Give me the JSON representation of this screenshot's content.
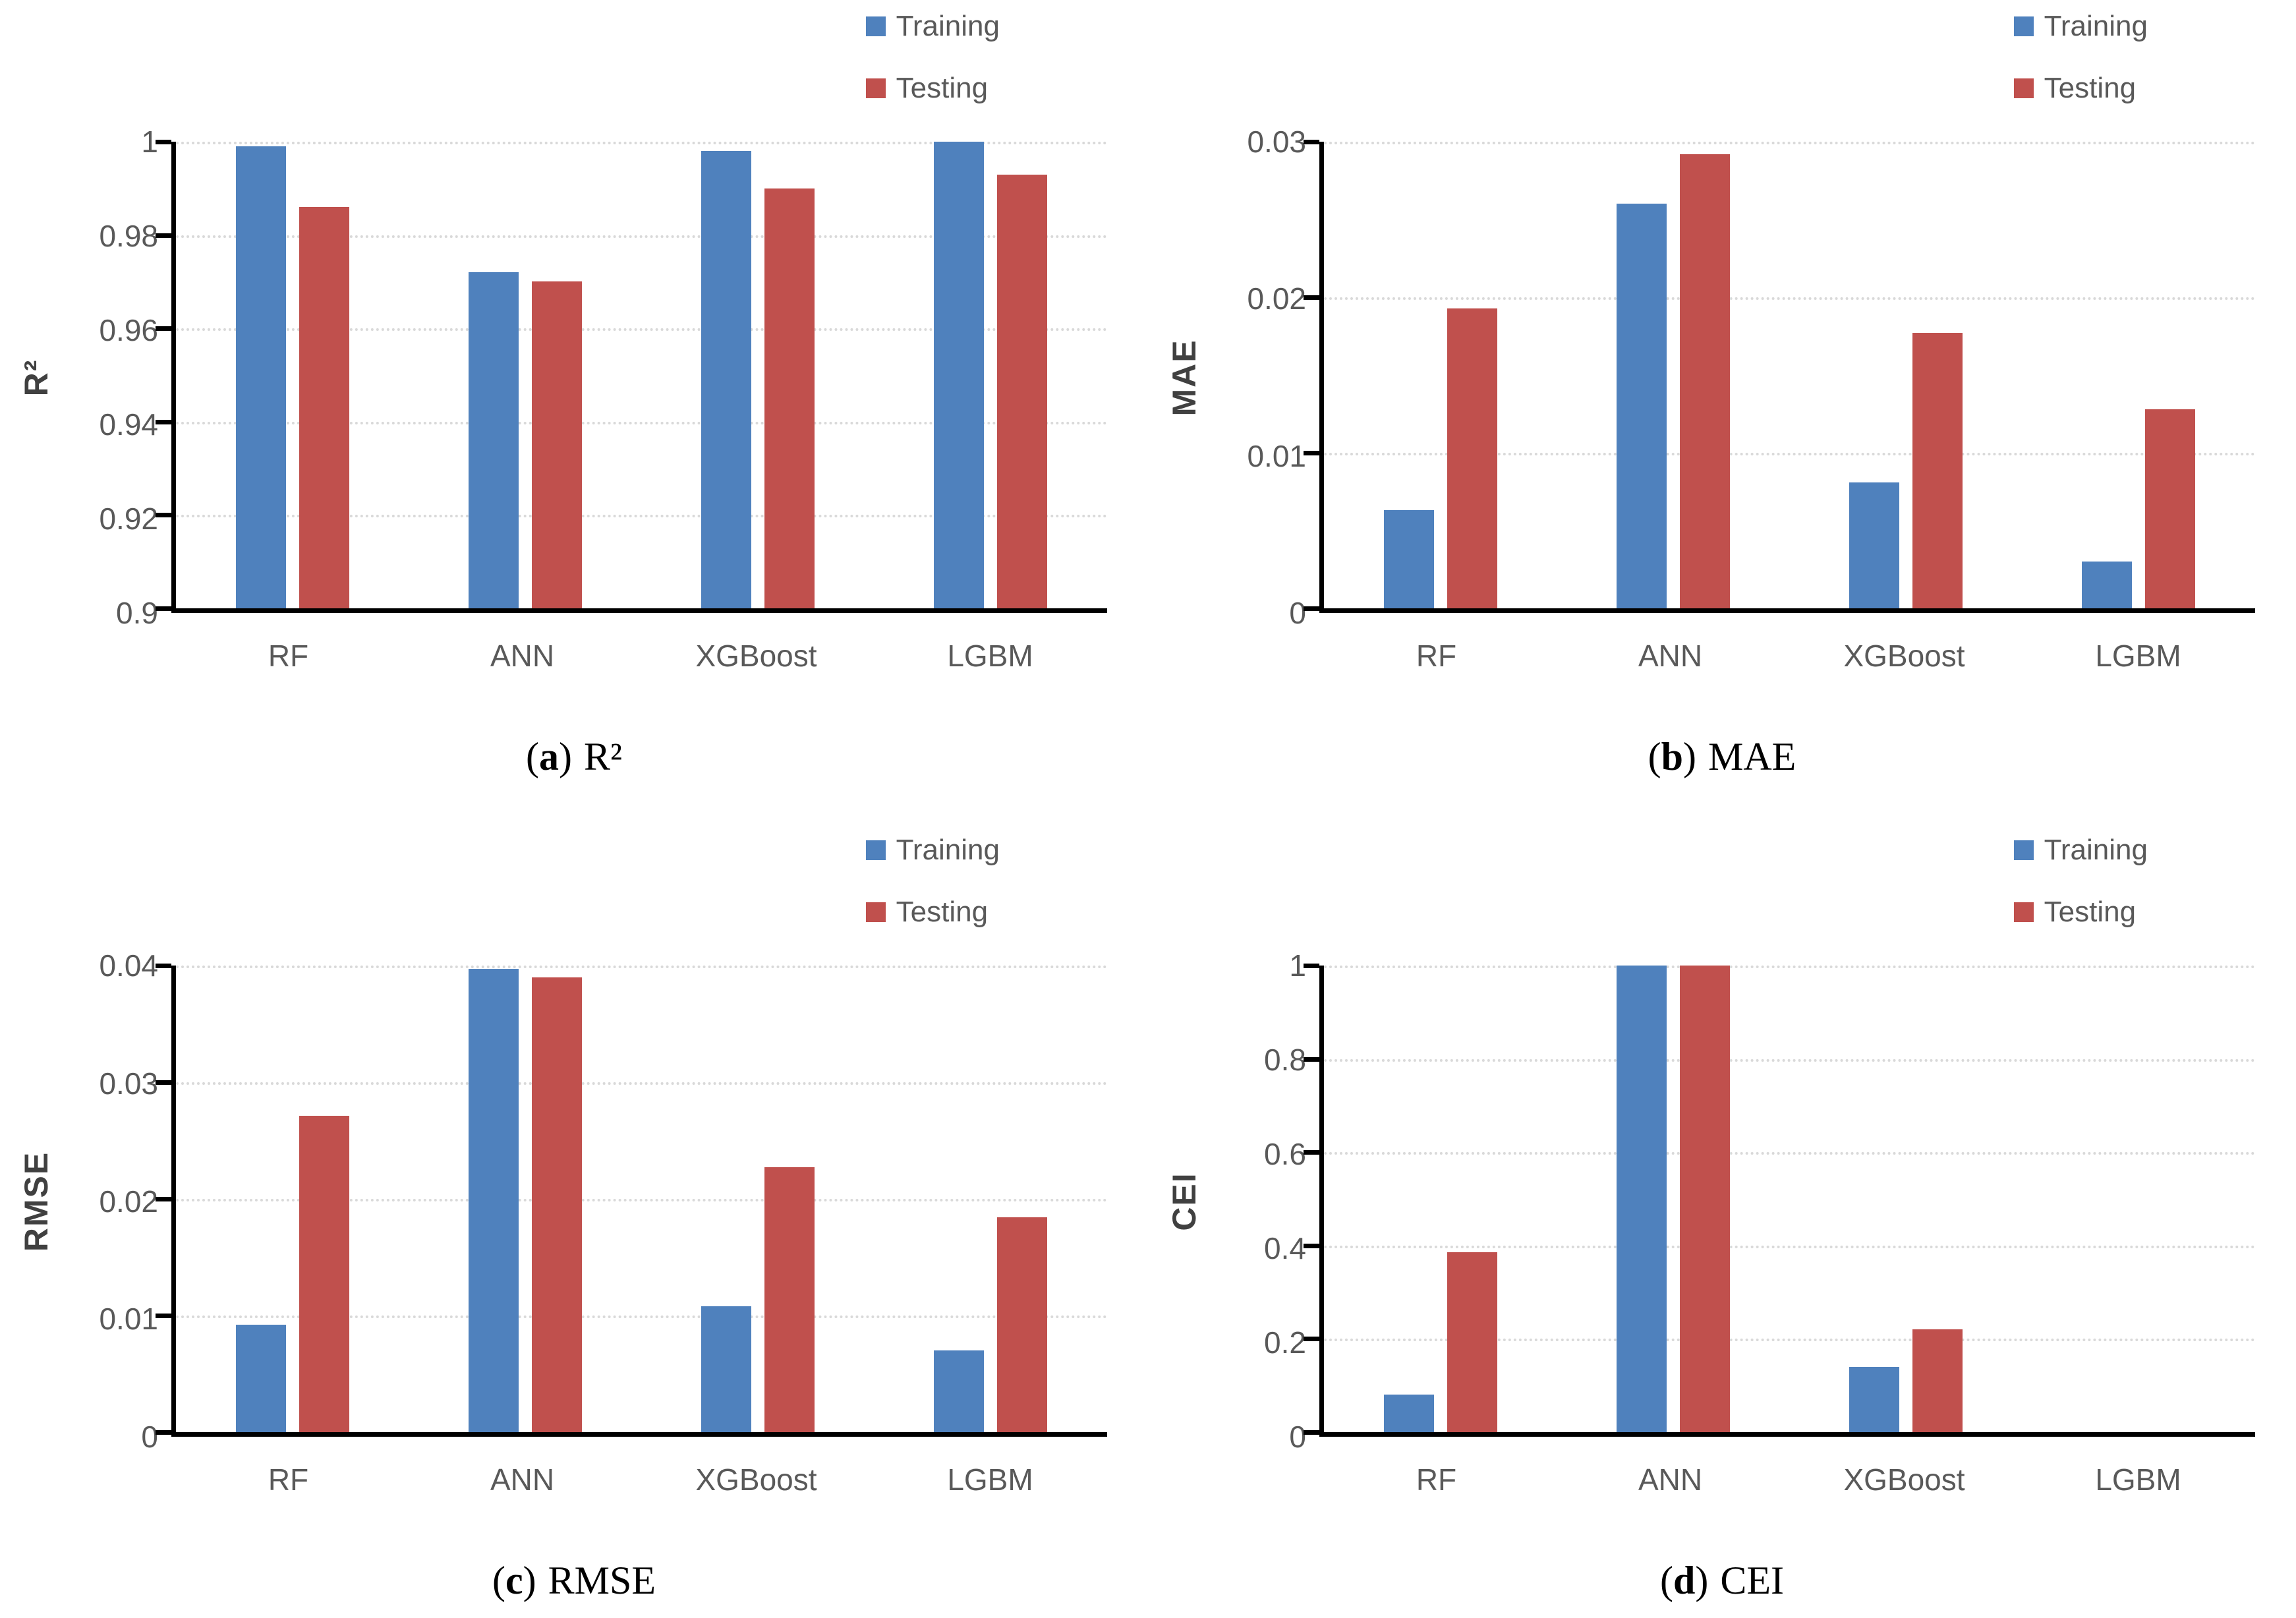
{
  "legend": {
    "items": [
      {
        "key": "training",
        "label": "Training"
      },
      {
        "key": "testing",
        "label": "Testing"
      }
    ]
  },
  "colors": {
    "training": "#4F81BD",
    "testing": "#C0504D",
    "axis": "#000000",
    "tick_text": "#595959",
    "category_text": "#595959",
    "legend_text": "#595959",
    "axis_title_text": "#404040",
    "gridline": "#D9D9D9",
    "background": "#FFFFFF",
    "caption_text": "#000000"
  },
  "categories": [
    "RF",
    "ANN",
    "XGBoost",
    "LGBM"
  ],
  "chart_data": [
    {
      "panel": "a",
      "type": "bar",
      "caption": {
        "letter": "a",
        "label": "R²"
      },
      "ylabel": "R²",
      "categories": [
        "RF",
        "ANN",
        "XGBoost",
        "LGBM"
      ],
      "series": [
        {
          "name": "Training",
          "values": [
            0.999,
            0.972,
            0.998,
            1.0
          ]
        },
        {
          "name": "Testing",
          "values": [
            0.986,
            0.97,
            0.99,
            0.993
          ]
        }
      ],
      "ylim": [
        0.9,
        1.0
      ],
      "yticks": [
        {
          "value": 1.0,
          "label": "1"
        },
        {
          "value": 0.98,
          "label": "0.98"
        },
        {
          "value": 0.96,
          "label": "0.96"
        },
        {
          "value": 0.94,
          "label": "0.94"
        },
        {
          "value": 0.92,
          "label": "0.92"
        },
        {
          "value": 0.9,
          "label": "0.9"
        }
      ],
      "grid": true,
      "legend_position": "top-right"
    },
    {
      "panel": "b",
      "type": "bar",
      "caption": {
        "letter": "b",
        "label": "MAE"
      },
      "ylabel": "MAE",
      "categories": [
        "RF",
        "ANN",
        "XGBoost",
        "LGBM"
      ],
      "series": [
        {
          "name": "Training",
          "values": [
            0.0063,
            0.026,
            0.0081,
            0.003
          ]
        },
        {
          "name": "Testing",
          "values": [
            0.0193,
            0.0292,
            0.0177,
            0.0128
          ]
        }
      ],
      "ylim": [
        0,
        0.03
      ],
      "yticks": [
        {
          "value": 0.03,
          "label": "0.03"
        },
        {
          "value": 0.02,
          "label": "0.02"
        },
        {
          "value": 0.01,
          "label": "0.01"
        },
        {
          "value": 0,
          "label": "0"
        }
      ],
      "grid": true,
      "legend_position": "top-right"
    },
    {
      "panel": "c",
      "type": "bar",
      "caption": {
        "letter": "c",
        "label": "RMSE"
      },
      "ylabel": "RMSE",
      "categories": [
        "RF",
        "ANN",
        "XGBoost",
        "LGBM"
      ],
      "series": [
        {
          "name": "Training",
          "values": [
            0.0092,
            0.0397,
            0.0108,
            0.007
          ]
        },
        {
          "name": "Testing",
          "values": [
            0.0271,
            0.039,
            0.0227,
            0.0184
          ]
        }
      ],
      "ylim": [
        0,
        0.04
      ],
      "yticks": [
        {
          "value": 0.04,
          "label": "0.04"
        },
        {
          "value": 0.03,
          "label": "0.03"
        },
        {
          "value": 0.02,
          "label": "0.02"
        },
        {
          "value": 0.01,
          "label": "0.01"
        },
        {
          "value": 0,
          "label": "0"
        }
      ],
      "grid": true,
      "legend_position": "top-right"
    },
    {
      "panel": "d",
      "type": "bar",
      "caption": {
        "letter": "d",
        "label": "CEI"
      },
      "ylabel": "CEI",
      "categories": [
        "RF",
        "ANN",
        "XGBoost",
        "LGBM"
      ],
      "series": [
        {
          "name": "Training",
          "values": [
            0.08,
            1.0,
            0.14,
            0
          ]
        },
        {
          "name": "Testing",
          "values": [
            0.385,
            1.0,
            0.22,
            0
          ]
        }
      ],
      "ylim": [
        0,
        1.0
      ],
      "yticks": [
        {
          "value": 1.0,
          "label": "1"
        },
        {
          "value": 0.8,
          "label": "0.8"
        },
        {
          "value": 0.6,
          "label": "0.6"
        },
        {
          "value": 0.4,
          "label": "0.4"
        },
        {
          "value": 0.2,
          "label": "0.2"
        },
        {
          "value": 0,
          "label": "0"
        }
      ],
      "grid": true,
      "legend_position": "top-right"
    }
  ]
}
